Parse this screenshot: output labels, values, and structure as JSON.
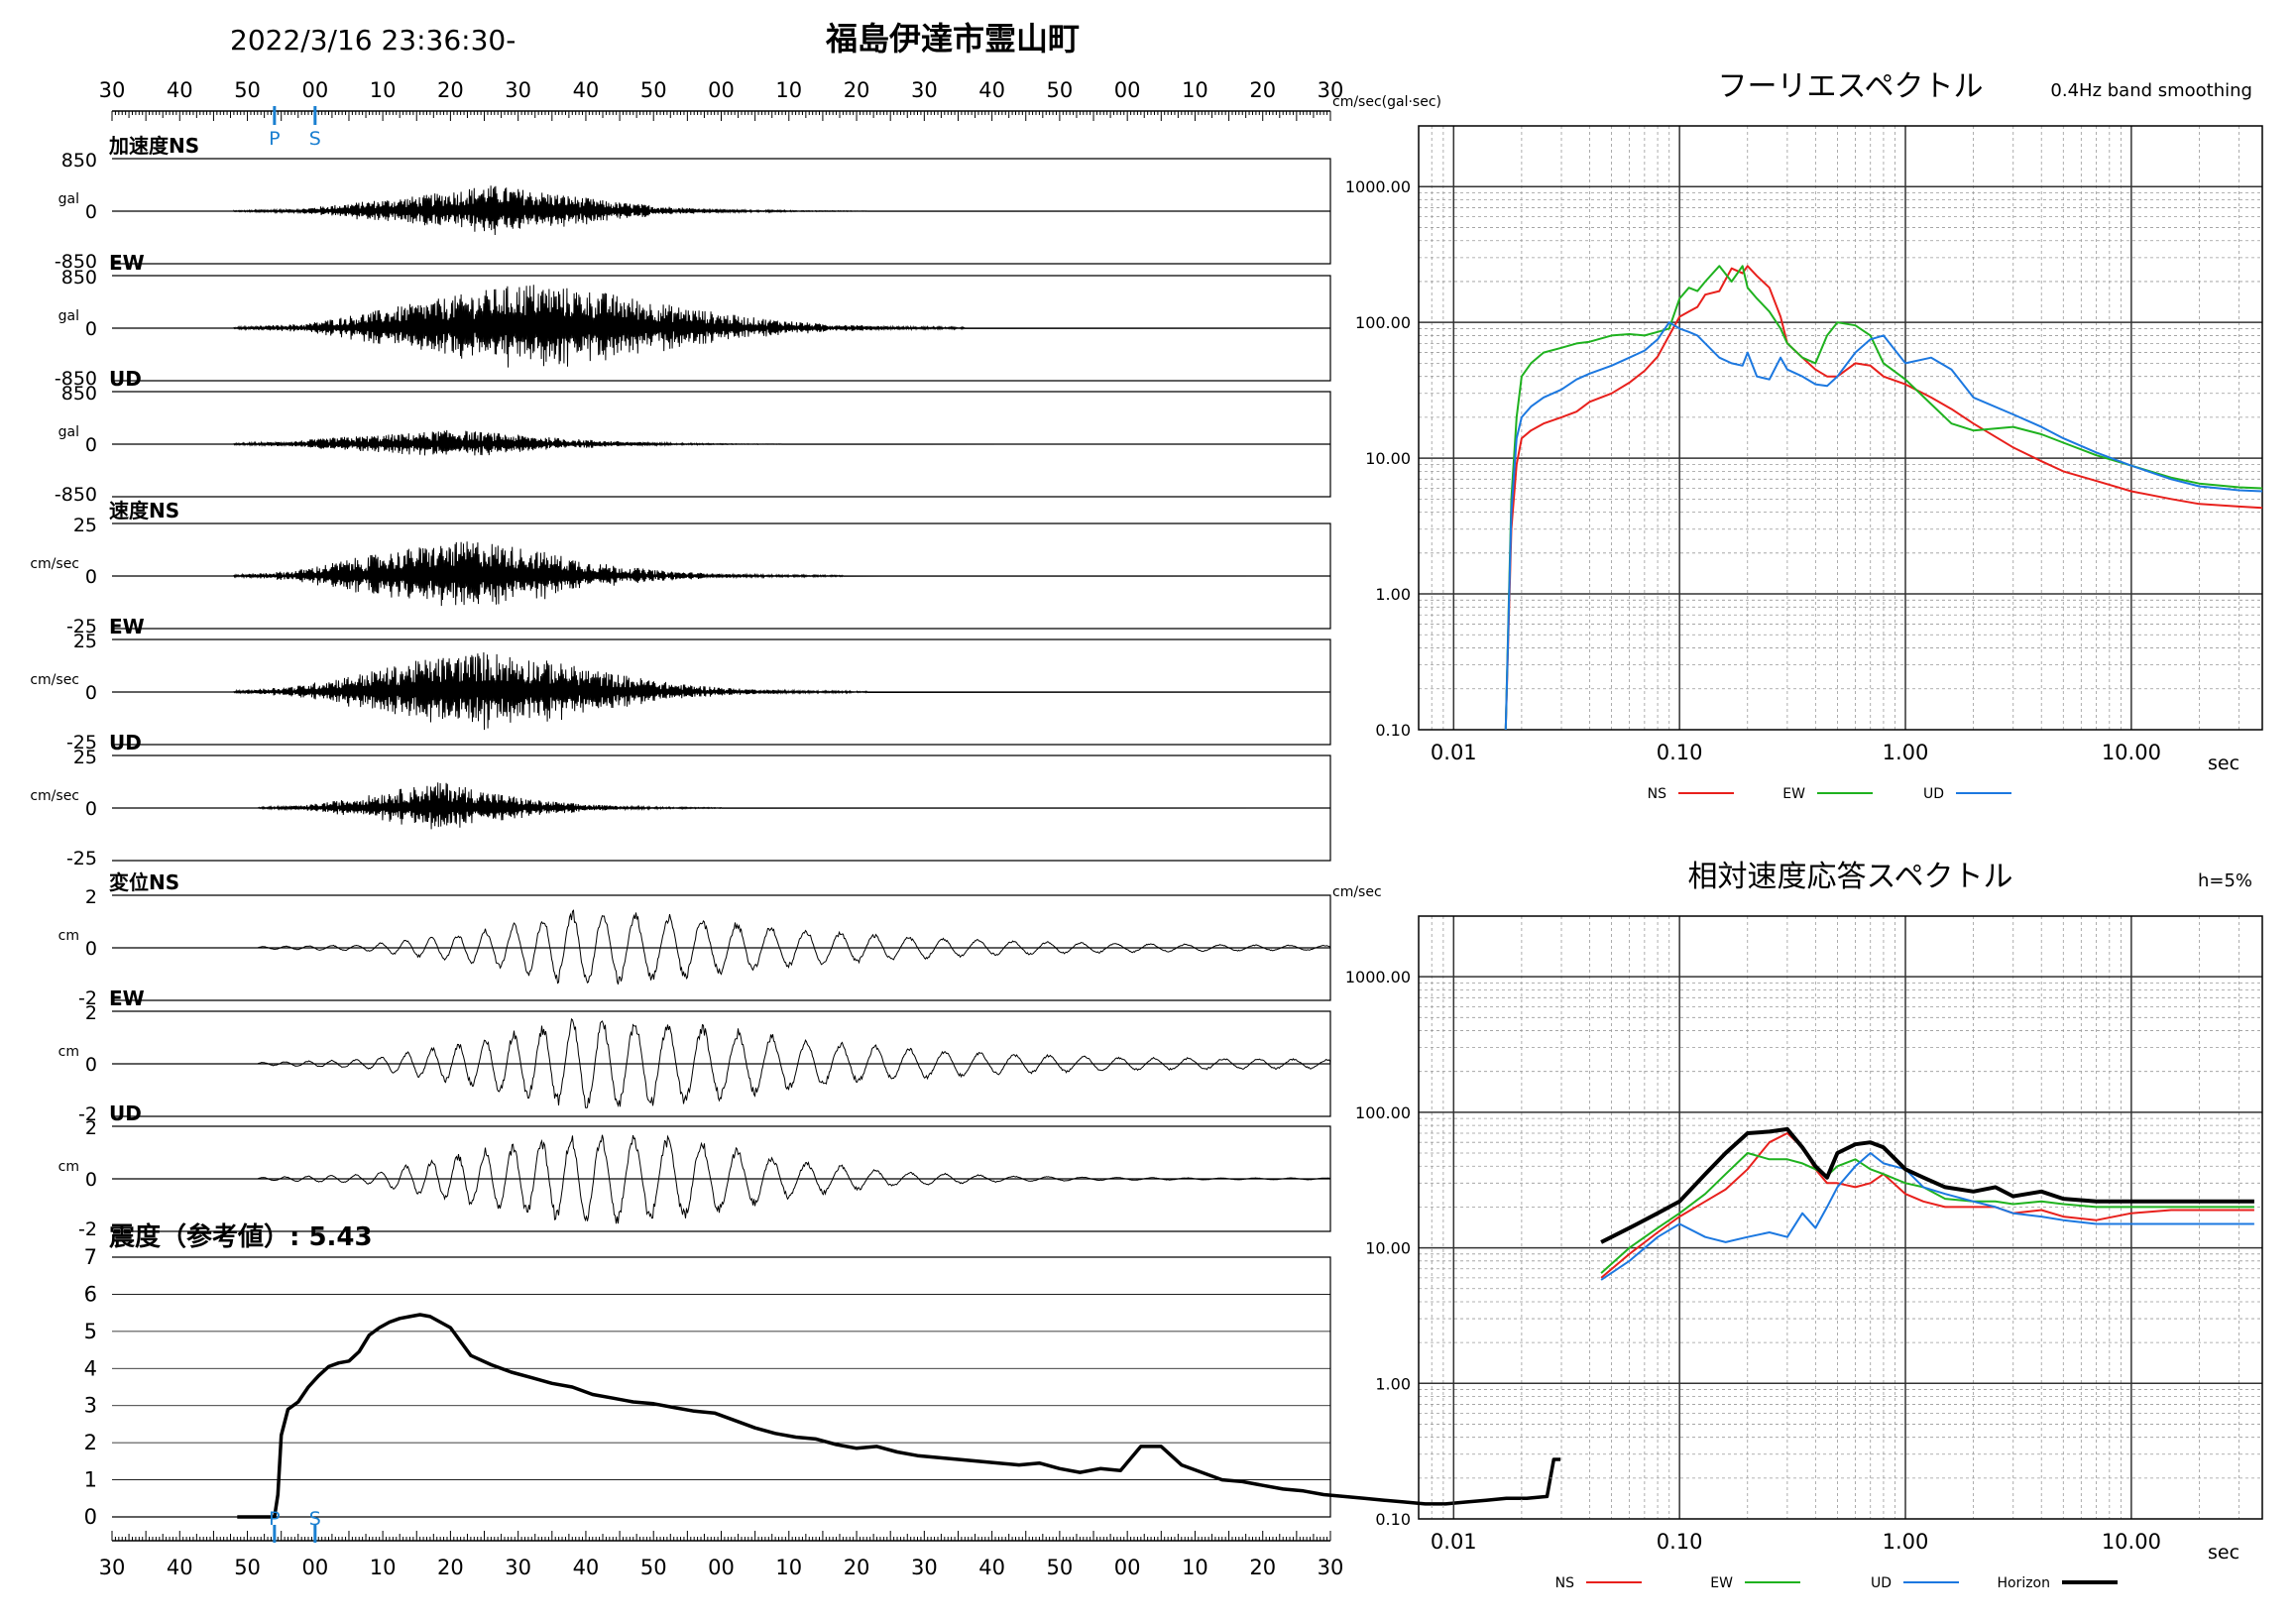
{
  "header": {
    "datetime": "2022/3/16 23:36:30-",
    "location": "福島伊達市霊山町"
  },
  "time_ticks": [
    "30",
    "40",
    "50",
    "00",
    "10",
    "20",
    "30",
    "40",
    "50",
    "00",
    "10",
    "20",
    "30",
    "40",
    "50",
    "00",
    "10",
    "20",
    "30"
  ],
  "markers": {
    "p": "P",
    "s": "S",
    "p_sec": 48,
    "s_sec": 60
  },
  "colors": {
    "ns": "#e8201c",
    "ew": "#1fb21f",
    "ud": "#1c78e0",
    "horizon": "#000000",
    "marker": "#1a7fd0"
  },
  "waveforms": [
    {
      "id": "acc-ns",
      "title": "加速度NS",
      "unit": "gal",
      "max": "850",
      "zero": "0",
      "min": "-850",
      "peak": 0.55,
      "env": [
        0.02,
        0.08,
        0.35,
        0.6,
        1.0,
        0.7,
        0.35,
        0.15,
        0.05,
        0.02,
        0.01
      ],
      "start": 0.1,
      "end": 0.62,
      "kind": "noise"
    },
    {
      "id": "acc-ew",
      "title": "EW",
      "unit": "gal",
      "max": "850",
      "zero": "0",
      "min": "-850",
      "peak": 0.95,
      "env": [
        0.02,
        0.1,
        0.4,
        0.7,
        1.0,
        0.8,
        0.5,
        0.25,
        0.1,
        0.04,
        0.02
      ],
      "start": 0.1,
      "end": 0.7,
      "kind": "noise"
    },
    {
      "id": "acc-ud",
      "title": "UD",
      "unit": "gal",
      "max": "850",
      "zero": "0",
      "min": "-850",
      "peak": 0.3,
      "env": [
        0.05,
        0.2,
        0.5,
        0.7,
        1.0,
        0.7,
        0.4,
        0.2,
        0.08,
        0.03,
        0.02
      ],
      "start": 0.1,
      "end": 0.55,
      "kind": "noise"
    },
    {
      "id": "vel-ns",
      "title": "速度NS",
      "unit": "cm/sec",
      "max": "25",
      "zero": "0",
      "min": "-25",
      "peak": 0.75,
      "env": [
        0.03,
        0.15,
        0.5,
        0.8,
        1.0,
        0.7,
        0.35,
        0.15,
        0.06,
        0.03,
        0.02
      ],
      "start": 0.1,
      "end": 0.6,
      "kind": "noise"
    },
    {
      "id": "vel-ew",
      "title": "EW",
      "unit": "cm/sec",
      "max": "25",
      "zero": "0",
      "min": "-25",
      "peak": 0.85,
      "env": [
        0.03,
        0.15,
        0.45,
        0.8,
        1.0,
        0.75,
        0.45,
        0.2,
        0.08,
        0.03,
        0.02
      ],
      "start": 0.1,
      "end": 0.62,
      "kind": "noise"
    },
    {
      "id": "vel-ud",
      "title": "UD",
      "unit": "cm/sec",
      "max": "25",
      "zero": "0",
      "min": "-25",
      "peak": 0.55,
      "env": [
        0.03,
        0.1,
        0.35,
        0.7,
        1.0,
        0.6,
        0.3,
        0.15,
        0.06,
        0.03,
        0.02
      ],
      "start": 0.12,
      "end": 0.5,
      "kind": "noise"
    },
    {
      "id": "disp-ns",
      "title": "変位NS",
      "unit": "cm",
      "max": "2",
      "zero": "0",
      "min": "-2",
      "peak": 0.85,
      "env": [
        0.03,
        0.08,
        0.4,
        1.0,
        0.8,
        0.5,
        0.3,
        0.18,
        0.12,
        0.08,
        0.06
      ],
      "start": 0.12,
      "end": 1.0,
      "kind": "wave"
    },
    {
      "id": "disp-ew",
      "title": "EW",
      "unit": "cm",
      "max": "2",
      "zero": "0",
      "min": "-2",
      "peak": 1.0,
      "env": [
        0.03,
        0.1,
        0.5,
        1.0,
        0.9,
        0.55,
        0.35,
        0.22,
        0.15,
        0.12,
        0.1
      ],
      "start": 0.12,
      "end": 1.0,
      "kind": "wave"
    },
    {
      "id": "disp-ud",
      "title": "UD",
      "unit": "cm",
      "max": "2",
      "zero": "0",
      "min": "-2",
      "peak": 1.0,
      "env": [
        0.03,
        0.1,
        0.6,
        1.0,
        0.9,
        0.4,
        0.15,
        0.06,
        0.03,
        0.02,
        0.02
      ],
      "start": 0.12,
      "end": 1.0,
      "kind": "wave"
    }
  ],
  "chart_data": [
    {
      "type": "line",
      "title": "震度（参考値）: 5.43",
      "ylim": [
        0,
        7
      ],
      "yticks": [
        "0",
        "1",
        "2",
        "3",
        "4",
        "5",
        "6",
        "7"
      ],
      "x_seconds": [
        37,
        47,
        48,
        49,
        50,
        52,
        55,
        58,
        61,
        64,
        67,
        70,
        73,
        76,
        79,
        82,
        85,
        88,
        91,
        94,
        100,
        106,
        112,
        118,
        124,
        130,
        136,
        142,
        148,
        154,
        160,
        166,
        172,
        178,
        184,
        190,
        196,
        202,
        208,
        214,
        220,
        226,
        232,
        238,
        244,
        250,
        256,
        262,
        268,
        274,
        280,
        286,
        292,
        298,
        304,
        310,
        316,
        322,
        328,
        334,
        340,
        346,
        352,
        358,
        364,
        370,
        376,
        382,
        388,
        394,
        400,
        406,
        412,
        418,
        424,
        426,
        427,
        428
      ],
      "y": [
        0,
        0,
        0,
        0.6,
        2.2,
        2.9,
        3.1,
        3.5,
        3.8,
        4.05,
        4.15,
        4.2,
        4.45,
        4.9,
        5.1,
        5.25,
        5.35,
        5.4,
        5.45,
        5.4,
        5.1,
        4.35,
        4.1,
        3.9,
        3.75,
        3.6,
        3.5,
        3.3,
        3.2,
        3.1,
        3.05,
        2.95,
        2.85,
        2.8,
        2.6,
        2.4,
        2.25,
        2.15,
        2.1,
        1.95,
        1.85,
        1.9,
        1.75,
        1.65,
        1.6,
        1.55,
        1.5,
        1.45,
        1.4,
        1.45,
        1.3,
        1.2,
        1.3,
        1.25,
        1.9,
        1.9,
        1.4,
        1.2,
        1.0,
        0.95,
        0.85,
        0.75,
        0.7,
        0.6,
        0.55,
        0.5,
        0.45,
        0.4,
        0.35,
        0.35,
        0.4,
        0.45,
        0.5,
        0.5,
        0.55,
        1.55,
        1.55,
        1.55
      ],
      "value_label": "5.43"
    },
    {
      "type": "line",
      "title": "フーリエスペクトル",
      "subtitle": "0.4Hz band smoothing",
      "ylabel": "cm/sec(gal·sec)",
      "xlabel": "sec",
      "xscale": "log",
      "yscale": "log",
      "xlim": [
        0.007,
        38
      ],
      "ylim": [
        0.1,
        2800
      ],
      "xticks": [
        "0.01",
        "0.10",
        "1.00",
        "10.00"
      ],
      "yticks": [
        "0.10",
        "1.00",
        "10.00",
        "100.00",
        "1000.00"
      ],
      "legend": "bottom",
      "series": [
        {
          "name": "NS",
          "color": "#e8201c",
          "x": [
            0.017,
            0.018,
            0.019,
            0.02,
            0.022,
            0.025,
            0.03,
            0.035,
            0.04,
            0.05,
            0.06,
            0.07,
            0.08,
            0.09,
            0.1,
            0.11,
            0.12,
            0.13,
            0.15,
            0.17,
            0.19,
            0.2,
            0.22,
            0.25,
            0.28,
            0.3,
            0.35,
            0.4,
            0.45,
            0.5,
            0.6,
            0.7,
            0.8,
            1.0,
            1.3,
            1.6,
            2.0,
            3.0,
            4.0,
            5.0,
            7.0,
            10.0,
            15.0,
            20.0,
            30.0,
            38.0
          ],
          "y": [
            0.1,
            3.0,
            9.0,
            14,
            16,
            18,
            20,
            22,
            26,
            30,
            36,
            44,
            56,
            80,
            110,
            120,
            130,
            160,
            170,
            250,
            230,
            260,
            220,
            180,
            110,
            70,
            55,
            45,
            40,
            40,
            50,
            48,
            40,
            35,
            28,
            23,
            18,
            12,
            9.5,
            8,
            6.8,
            5.7,
            5.0,
            4.6,
            4.4,
            4.3
          ]
        },
        {
          "name": "EW",
          "color": "#1fb21f",
          "x": [
            0.017,
            0.018,
            0.019,
            0.02,
            0.022,
            0.025,
            0.03,
            0.035,
            0.04,
            0.05,
            0.06,
            0.07,
            0.08,
            0.09,
            0.1,
            0.11,
            0.12,
            0.13,
            0.15,
            0.17,
            0.19,
            0.2,
            0.22,
            0.25,
            0.28,
            0.3,
            0.35,
            0.4,
            0.45,
            0.5,
            0.6,
            0.7,
            0.8,
            1.0,
            1.3,
            1.6,
            2.0,
            3.0,
            4.0,
            5.0,
            7.0,
            10.0,
            15.0,
            20.0,
            30.0,
            38.0
          ],
          "y": [
            0.1,
            5.0,
            20,
            40,
            50,
            60,
            65,
            70,
            72,
            80,
            82,
            80,
            85,
            90,
            150,
            180,
            170,
            200,
            260,
            200,
            260,
            180,
            150,
            120,
            90,
            70,
            55,
            50,
            80,
            100,
            95,
            80,
            50,
            38,
            25,
            18,
            16,
            17,
            15,
            13,
            10.5,
            8.8,
            7.2,
            6.5,
            6.1,
            6.0
          ]
        },
        {
          "name": "UD",
          "color": "#1c78e0",
          "x": [
            0.017,
            0.018,
            0.019,
            0.02,
            0.022,
            0.025,
            0.03,
            0.035,
            0.04,
            0.05,
            0.06,
            0.07,
            0.08,
            0.09,
            0.1,
            0.11,
            0.12,
            0.13,
            0.15,
            0.17,
            0.19,
            0.2,
            0.22,
            0.25,
            0.28,
            0.3,
            0.35,
            0.4,
            0.45,
            0.5,
            0.6,
            0.7,
            0.8,
            1.0,
            1.3,
            1.6,
            2.0,
            3.0,
            4.0,
            5.0,
            7.0,
            10.0,
            15.0,
            20.0,
            30.0,
            38.0
          ],
          "y": [
            0.1,
            4.0,
            14,
            20,
            24,
            28,
            32,
            38,
            42,
            48,
            55,
            62,
            75,
            100,
            90,
            85,
            80,
            70,
            55,
            50,
            48,
            60,
            40,
            38,
            55,
            45,
            40,
            35,
            34,
            40,
            60,
            75,
            80,
            50,
            55,
            45,
            28,
            21,
            17,
            14,
            11,
            8.8,
            7.0,
            6.2,
            5.8,
            5.7
          ]
        }
      ]
    },
    {
      "type": "line",
      "title": "相対速度応答スペクトル",
      "subtitle": "h=5%",
      "ylabel": "cm/sec",
      "xlabel": "sec",
      "xscale": "log",
      "yscale": "log",
      "xlim": [
        0.007,
        38
      ],
      "ylim": [
        0.1,
        2800
      ],
      "xticks": [
        "0.01",
        "0.10",
        "1.00",
        "10.00"
      ],
      "yticks": [
        "0.10",
        "1.00",
        "10.00",
        "100.00",
        "1000.00"
      ],
      "legend": "bottom",
      "series": [
        {
          "name": "NS",
          "color": "#e8201c",
          "x": [
            0.045,
            0.06,
            0.08,
            0.1,
            0.13,
            0.16,
            0.2,
            0.25,
            0.3,
            0.35,
            0.4,
            0.45,
            0.5,
            0.6,
            0.7,
            0.8,
            1.0,
            1.2,
            1.5,
            2.0,
            2.5,
            3.0,
            4.0,
            5.0,
            7.0,
            10.0,
            15.0,
            20.0,
            30.0,
            35.0
          ],
          "y": [
            6,
            9,
            13,
            17,
            22,
            27,
            38,
            60,
            70,
            55,
            38,
            30,
            30,
            28,
            30,
            35,
            25,
            22,
            20,
            20,
            20,
            18,
            19,
            17,
            16,
            18,
            19,
            19,
            19,
            19
          ]
        },
        {
          "name": "EW",
          "color": "#1fb21f",
          "x": [
            0.045,
            0.06,
            0.08,
            0.1,
            0.13,
            0.16,
            0.2,
            0.25,
            0.3,
            0.35,
            0.4,
            0.45,
            0.5,
            0.6,
            0.7,
            0.8,
            1.0,
            1.2,
            1.5,
            2.0,
            2.5,
            3.0,
            4.0,
            5.0,
            7.0,
            10.0,
            15.0,
            20.0,
            30.0,
            35.0
          ],
          "y": [
            6.5,
            10,
            14,
            18,
            25,
            35,
            50,
            45,
            45,
            42,
            38,
            34,
            40,
            45,
            38,
            35,
            30,
            28,
            23,
            22,
            22,
            21,
            22,
            21,
            20,
            20,
            20,
            20,
            20,
            20
          ]
        },
        {
          "name": "UD",
          "color": "#1c78e0",
          "x": [
            0.045,
            0.06,
            0.08,
            0.1,
            0.13,
            0.16,
            0.2,
            0.25,
            0.3,
            0.35,
            0.4,
            0.45,
            0.5,
            0.6,
            0.7,
            0.8,
            1.0,
            1.2,
            1.5,
            2.0,
            2.5,
            3.0,
            4.0,
            5.0,
            7.0,
            10.0,
            15.0,
            20.0,
            30.0,
            35.0
          ],
          "y": [
            5.8,
            8,
            12,
            15,
            12,
            11,
            12,
            13,
            12,
            18,
            14,
            20,
            28,
            40,
            50,
            42,
            38,
            28,
            25,
            22,
            20,
            18,
            17,
            16,
            15,
            15,
            15,
            15,
            15,
            15
          ]
        },
        {
          "name": "Horizon",
          "color": "#000000",
          "x": [
            0.045,
            0.06,
            0.08,
            0.1,
            0.13,
            0.16,
            0.2,
            0.25,
            0.3,
            0.35,
            0.4,
            0.45,
            0.5,
            0.6,
            0.7,
            0.8,
            1.0,
            1.2,
            1.5,
            2.0,
            2.5,
            3.0,
            4.0,
            5.0,
            7.0,
            10.0,
            15.0,
            20.0,
            30.0,
            35.0
          ],
          "y": [
            11,
            14,
            18,
            22,
            35,
            50,
            70,
            72,
            75,
            55,
            40,
            33,
            50,
            58,
            60,
            55,
            38,
            33,
            28,
            26,
            28,
            24,
            26,
            23,
            22,
            22,
            22,
            22,
            22,
            22
          ]
        }
      ]
    }
  ]
}
